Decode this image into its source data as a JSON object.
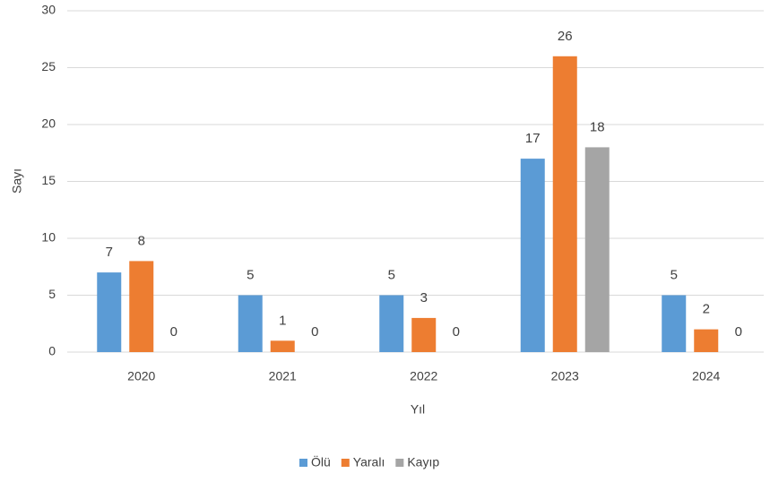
{
  "chart_data": {
    "type": "bar",
    "categories": [
      "2020",
      "2021",
      "2022",
      "2023",
      "2024"
    ],
    "series": [
      {
        "name": "Ölü",
        "color": "#5b9bd5",
        "values": [
          7,
          5,
          5,
          17,
          5
        ]
      },
      {
        "name": "Yaralı",
        "color": "#ed7d31",
        "values": [
          8,
          1,
          3,
          26,
          2
        ]
      },
      {
        "name": "Kayıp",
        "color": "#a5a5a5",
        "values": [
          0,
          0,
          0,
          18,
          0
        ]
      }
    ],
    "ylim": [
      0,
      30
    ],
    "yticks": [
      0,
      5,
      10,
      15,
      20,
      25,
      30
    ],
    "grid": true,
    "x_label": "Yıl",
    "y_label": "Sayı",
    "legend": "bottom"
  }
}
